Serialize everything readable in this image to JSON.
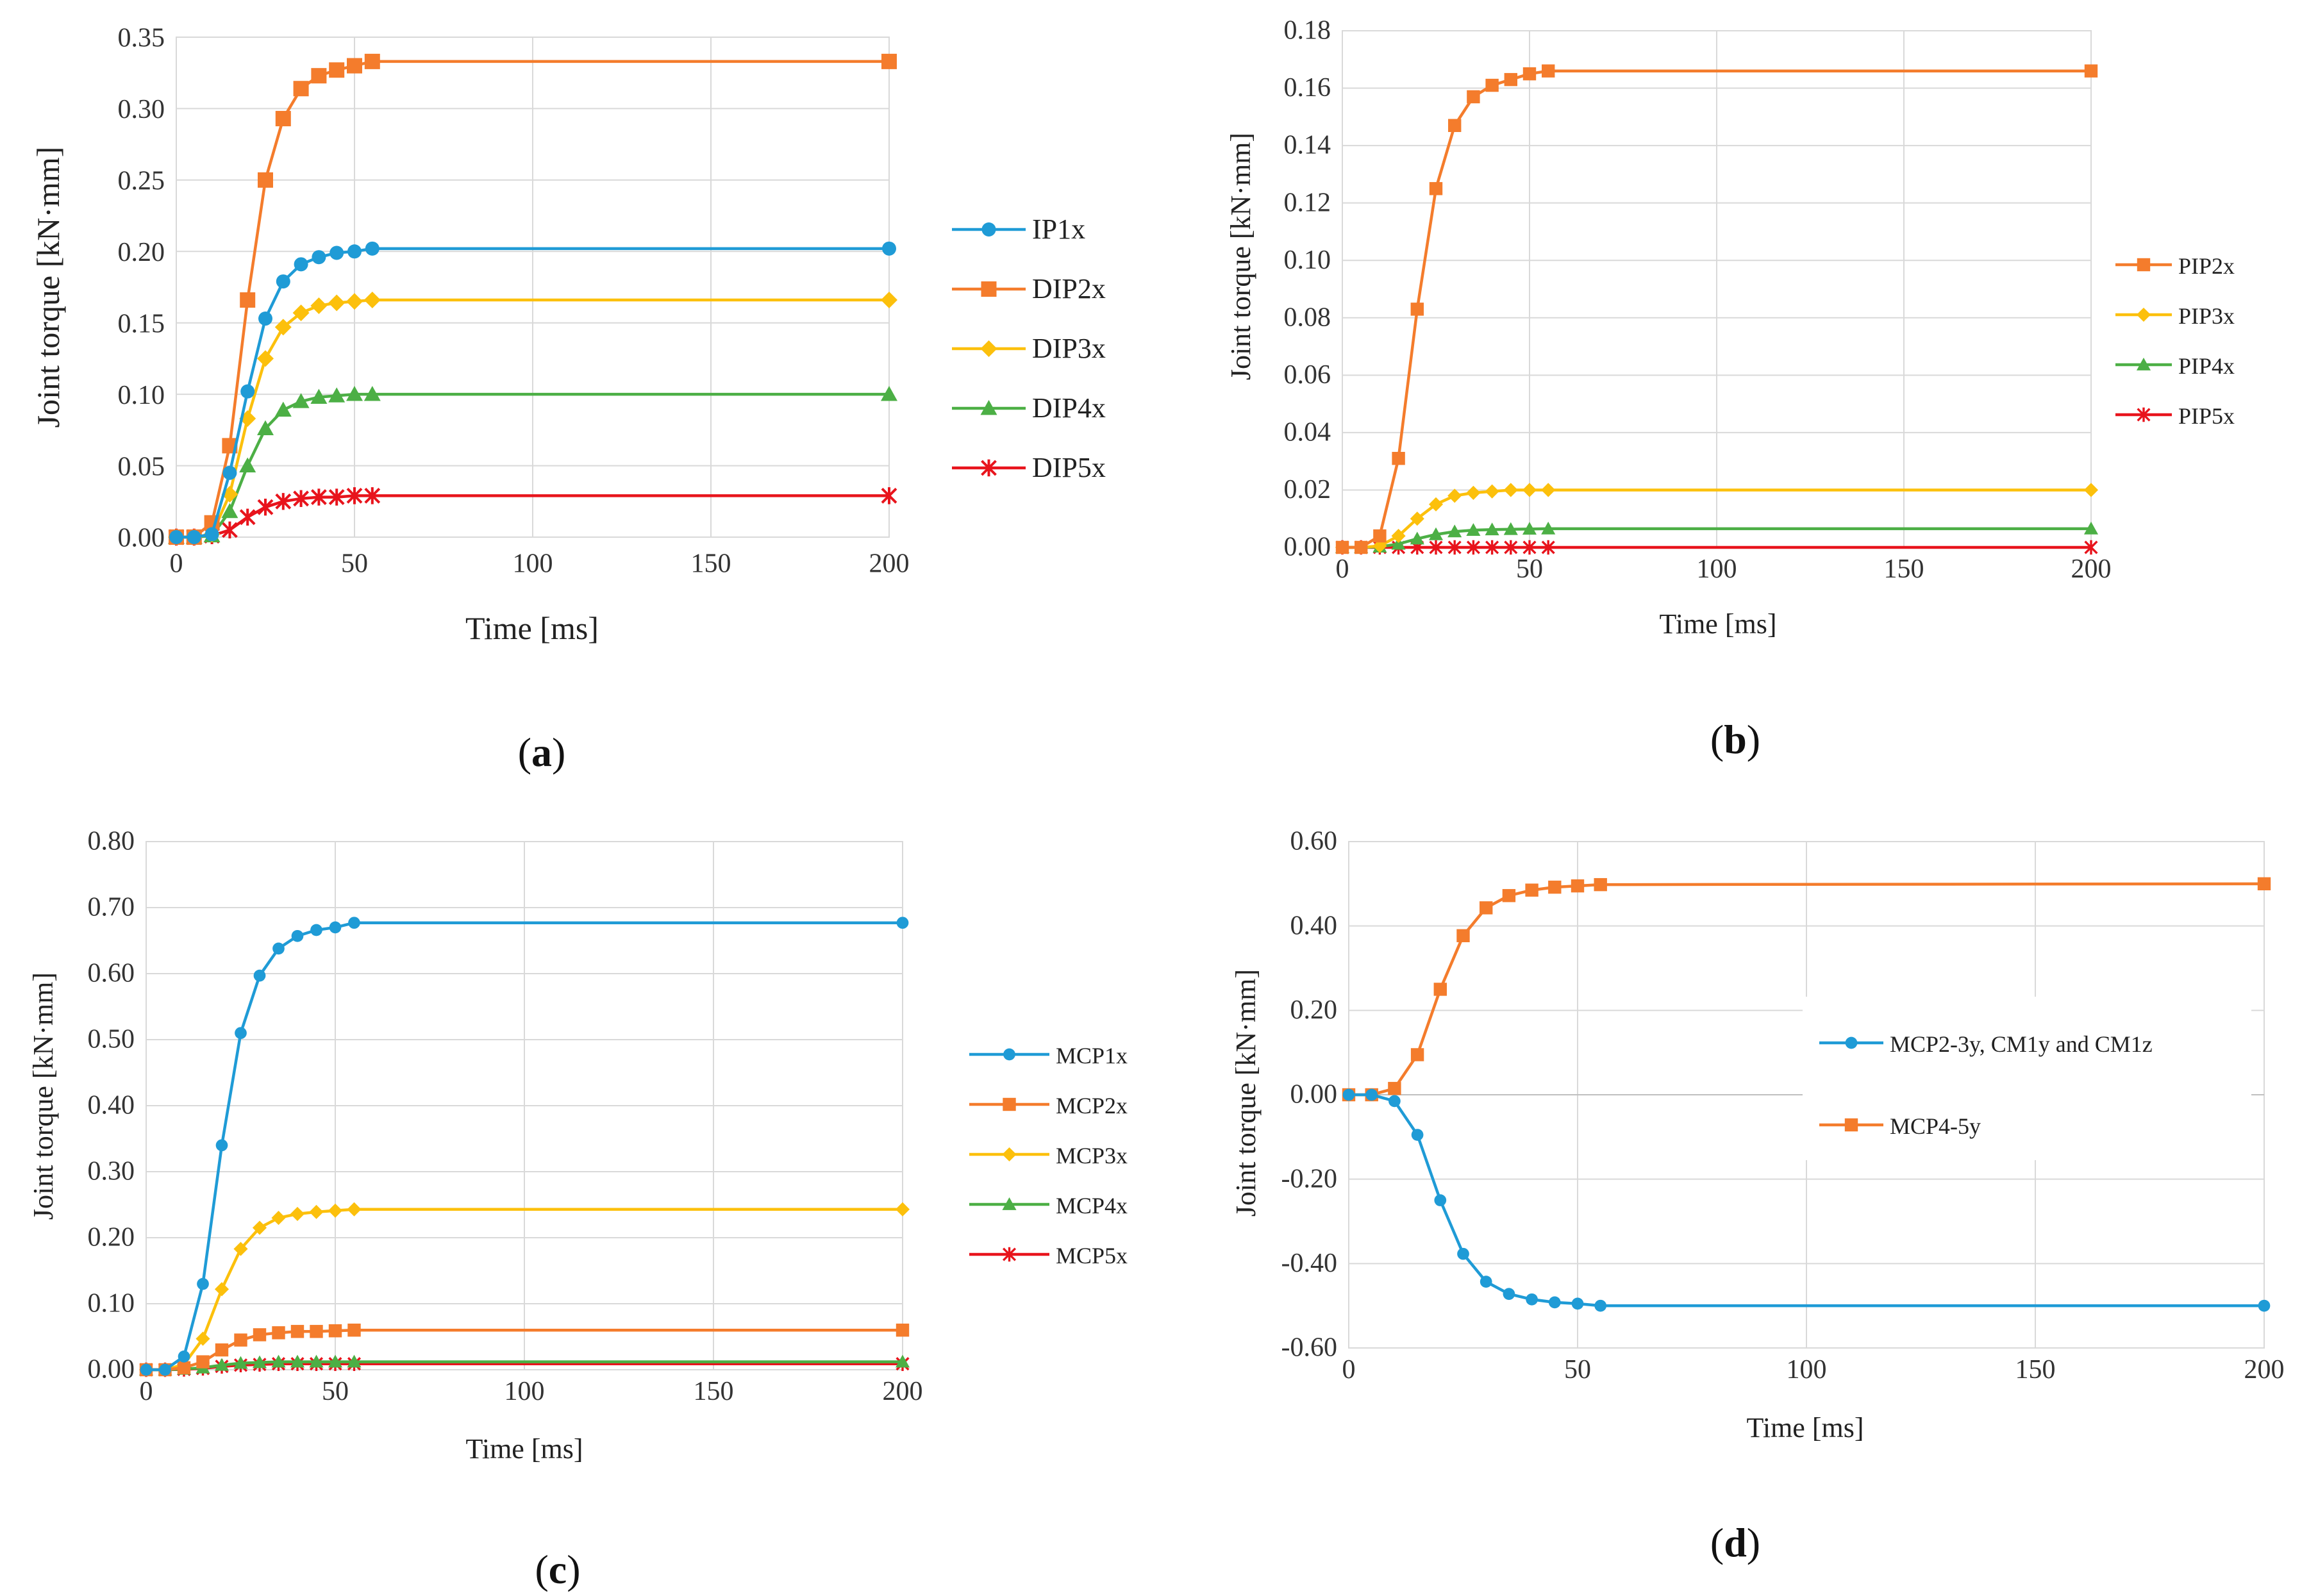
{
  "colors": {
    "blue": "#1f9bd6",
    "orange": "#f47c2c",
    "yellow": "#fcc00c",
    "green": "#4caf45",
    "red": "#e8141c",
    "grid": "#d9d9d9",
    "axis": "#bfbfbf"
  },
  "panel_labels": {
    "a": {
      "open": "(",
      "letter": "a",
      "close": ")"
    },
    "b": {
      "open": "(",
      "letter": "b",
      "close": ")"
    },
    "c": {
      "open": "(",
      "letter": "c",
      "close": ")"
    },
    "d": {
      "open": "(",
      "letter": "d",
      "close": ")"
    }
  },
  "chart_data": [
    {
      "id": "a",
      "type": "line",
      "xlabel": "Time [ms]",
      "ylabel": "Joint torque [kN·mm]",
      "xlim": [
        0,
        200
      ],
      "ylim": [
        0,
        0.35
      ],
      "xticks": [
        0,
        50,
        100,
        150,
        200
      ],
      "yticks": [
        0,
        0.05,
        0.1,
        0.15,
        0.2,
        0.25,
        0.3,
        0.35
      ],
      "xtick_labels": [
        "0",
        "50",
        "100",
        "150",
        "200"
      ],
      "ytick_labels": [
        "0.00",
        "0.05",
        "0.10",
        "0.15",
        "0.20",
        "0.25",
        "0.30",
        "0.35"
      ],
      "grid": true,
      "legend_position": "right",
      "x": [
        0,
        5,
        10,
        15,
        20,
        25,
        30,
        35,
        40,
        45,
        50,
        55,
        200
      ],
      "series": [
        {
          "name": "IP1x",
          "color": "#1f9bd6",
          "marker": "circle",
          "values": [
            0,
            0,
            0.002,
            0.045,
            0.102,
            0.153,
            0.179,
            0.191,
            0.196,
            0.199,
            0.2,
            0.202,
            0.202
          ]
        },
        {
          "name": "DIP2x",
          "color": "#f47c2c",
          "marker": "square",
          "values": [
            0,
            0,
            0.01,
            0.064,
            0.166,
            0.25,
            0.293,
            0.314,
            0.323,
            0.327,
            0.33,
            0.333,
            0.333
          ]
        },
        {
          "name": "DIP3x",
          "color": "#fcc00c",
          "marker": "diamond",
          "values": [
            0,
            0,
            0.002,
            0.03,
            0.083,
            0.125,
            0.147,
            0.157,
            0.162,
            0.164,
            0.165,
            0.166,
            0.166
          ]
        },
        {
          "name": "DIP4x",
          "color": "#4caf45",
          "marker": "triangle",
          "values": [
            0,
            0,
            0.001,
            0.018,
            0.05,
            0.076,
            0.089,
            0.095,
            0.098,
            0.099,
            0.1,
            0.1,
            0.1
          ]
        },
        {
          "name": "DIP5x",
          "color": "#e8141c",
          "marker": "star",
          "values": [
            0,
            0,
            0.001,
            0.005,
            0.014,
            0.021,
            0.025,
            0.027,
            0.028,
            0.028,
            0.029,
            0.029,
            0.029
          ]
        }
      ]
    },
    {
      "id": "b",
      "type": "line",
      "xlabel": "Time [ms]",
      "ylabel": "Joint torque [kN·mm]",
      "xlim": [
        0,
        200
      ],
      "ylim": [
        0,
        0.18
      ],
      "xticks": [
        0,
        50,
        100,
        150,
        200
      ],
      "yticks": [
        0,
        0.02,
        0.04,
        0.06,
        0.08,
        0.1,
        0.12,
        0.14,
        0.16,
        0.18
      ],
      "xtick_labels": [
        "0",
        "50",
        "100",
        "150",
        "200"
      ],
      "ytick_labels": [
        "0.00",
        "0.02",
        "0.04",
        "0.06",
        "0.08",
        "0.10",
        "0.12",
        "0.14",
        "0.16",
        "0.18"
      ],
      "grid": true,
      "legend_position": "right",
      "x": [
        0,
        5,
        10,
        15,
        20,
        25,
        30,
        35,
        40,
        45,
        50,
        55,
        200
      ],
      "series": [
        {
          "name": "PIP2x",
          "color": "#f47c2c",
          "marker": "square",
          "values": [
            0,
            0,
            0.004,
            0.031,
            0.083,
            0.125,
            0.147,
            0.157,
            0.161,
            0.163,
            0.165,
            0.166,
            0.166
          ]
        },
        {
          "name": "PIP3x",
          "color": "#fcc00c",
          "marker": "diamond",
          "values": [
            0,
            0,
            0.0005,
            0.004,
            0.01,
            0.015,
            0.018,
            0.019,
            0.0195,
            0.02,
            0.02,
            0.02,
            0.02
          ]
        },
        {
          "name": "PIP4x",
          "color": "#4caf45",
          "marker": "triangle",
          "values": [
            0,
            0,
            0.0002,
            0.0012,
            0.003,
            0.0045,
            0.0055,
            0.006,
            0.0062,
            0.0063,
            0.0064,
            0.0065,
            0.0065
          ]
        },
        {
          "name": "PIP5x",
          "color": "#e8141c",
          "marker": "star",
          "values": [
            0,
            0,
            0,
            0,
            0,
            0,
            0,
            0,
            0,
            0,
            0,
            0,
            0
          ]
        }
      ]
    },
    {
      "id": "c",
      "type": "line",
      "xlabel": "Time [ms]",
      "ylabel": "Joint torque [kN·mm]",
      "xlim": [
        0,
        200
      ],
      "ylim": [
        0,
        0.8
      ],
      "xticks": [
        0,
        50,
        100,
        150,
        200
      ],
      "yticks": [
        0,
        0.1,
        0.2,
        0.3,
        0.4,
        0.5,
        0.6,
        0.7,
        0.8
      ],
      "xtick_labels": [
        "0",
        "50",
        "100",
        "150",
        "200"
      ],
      "ytick_labels": [
        "0.00",
        "0.10",
        "0.20",
        "0.30",
        "0.40",
        "0.50",
        "0.60",
        "0.70",
        "0.80"
      ],
      "grid": true,
      "legend_position": "right",
      "x": [
        0,
        5,
        10,
        15,
        20,
        25,
        30,
        35,
        40,
        45,
        50,
        55,
        200
      ],
      "series": [
        {
          "name": "MCP1x",
          "color": "#1f9bd6",
          "marker": "circle",
          "values": [
            0,
            0,
            0.02,
            0.13,
            0.34,
            0.51,
            0.597,
            0.638,
            0.657,
            0.666,
            0.67,
            0.677,
            0.677
          ]
        },
        {
          "name": "MCP2x",
          "color": "#f47c2c",
          "marker": "square",
          "values": [
            0,
            0,
            0.003,
            0.012,
            0.03,
            0.045,
            0.053,
            0.056,
            0.058,
            0.058,
            0.059,
            0.06,
            0.06
          ]
        },
        {
          "name": "MCP3x",
          "color": "#fcc00c",
          "marker": "diamond",
          "values": [
            0,
            0,
            0.008,
            0.047,
            0.122,
            0.183,
            0.215,
            0.23,
            0.236,
            0.239,
            0.241,
            0.243,
            0.243
          ]
        },
        {
          "name": "MCP4x",
          "color": "#4caf45",
          "marker": "triangle",
          "values": [
            0,
            0,
            0.001,
            0.003,
            0.007,
            0.01,
            0.011,
            0.012,
            0.012,
            0.012,
            0.012,
            0.012,
            0.012
          ]
        },
        {
          "name": "MCP5x",
          "color": "#e8141c",
          "marker": "star",
          "values": [
            0,
            0,
            0.0005,
            0.002,
            0.005,
            0.007,
            0.008,
            0.009,
            0.009,
            0.009,
            0.009,
            0.009,
            0.009
          ]
        }
      ]
    },
    {
      "id": "d",
      "type": "line",
      "xlabel": "Time [ms]",
      "ylabel": "Joint torque [kN·mm]",
      "xlim": [
        0,
        200
      ],
      "ylim": [
        -0.6,
        0.6
      ],
      "xticks": [
        0,
        50,
        100,
        150,
        200
      ],
      "yticks": [
        -0.6,
        -0.4,
        -0.2,
        0,
        0.2,
        0.4,
        0.6
      ],
      "xtick_labels": [
        "0",
        "50",
        "100",
        "150",
        "200"
      ],
      "ytick_labels": [
        "-0.60",
        "-0.40",
        "-0.20",
        "0.00",
        "0.20",
        "0.40",
        "0.60"
      ],
      "grid": true,
      "legend_position": "inside-right",
      "x": [
        0,
        5,
        10,
        15,
        20,
        25,
        30,
        35,
        40,
        45,
        50,
        55,
        200
      ],
      "series": [
        {
          "name": "MCP2-3y, CM1y and CM1z",
          "color": "#1f9bd6",
          "marker": "circle",
          "values": [
            0,
            0,
            -0.015,
            -0.095,
            -0.25,
            -0.377,
            -0.443,
            -0.472,
            -0.485,
            -0.492,
            -0.495,
            -0.5,
            -0.5
          ]
        },
        {
          "name": "MCP4-5y",
          "color": "#f47c2c",
          "marker": "square",
          "values": [
            0,
            0,
            0.015,
            0.095,
            0.25,
            0.377,
            0.443,
            0.472,
            0.485,
            0.492,
            0.495,
            0.498,
            0.5
          ]
        }
      ]
    }
  ]
}
